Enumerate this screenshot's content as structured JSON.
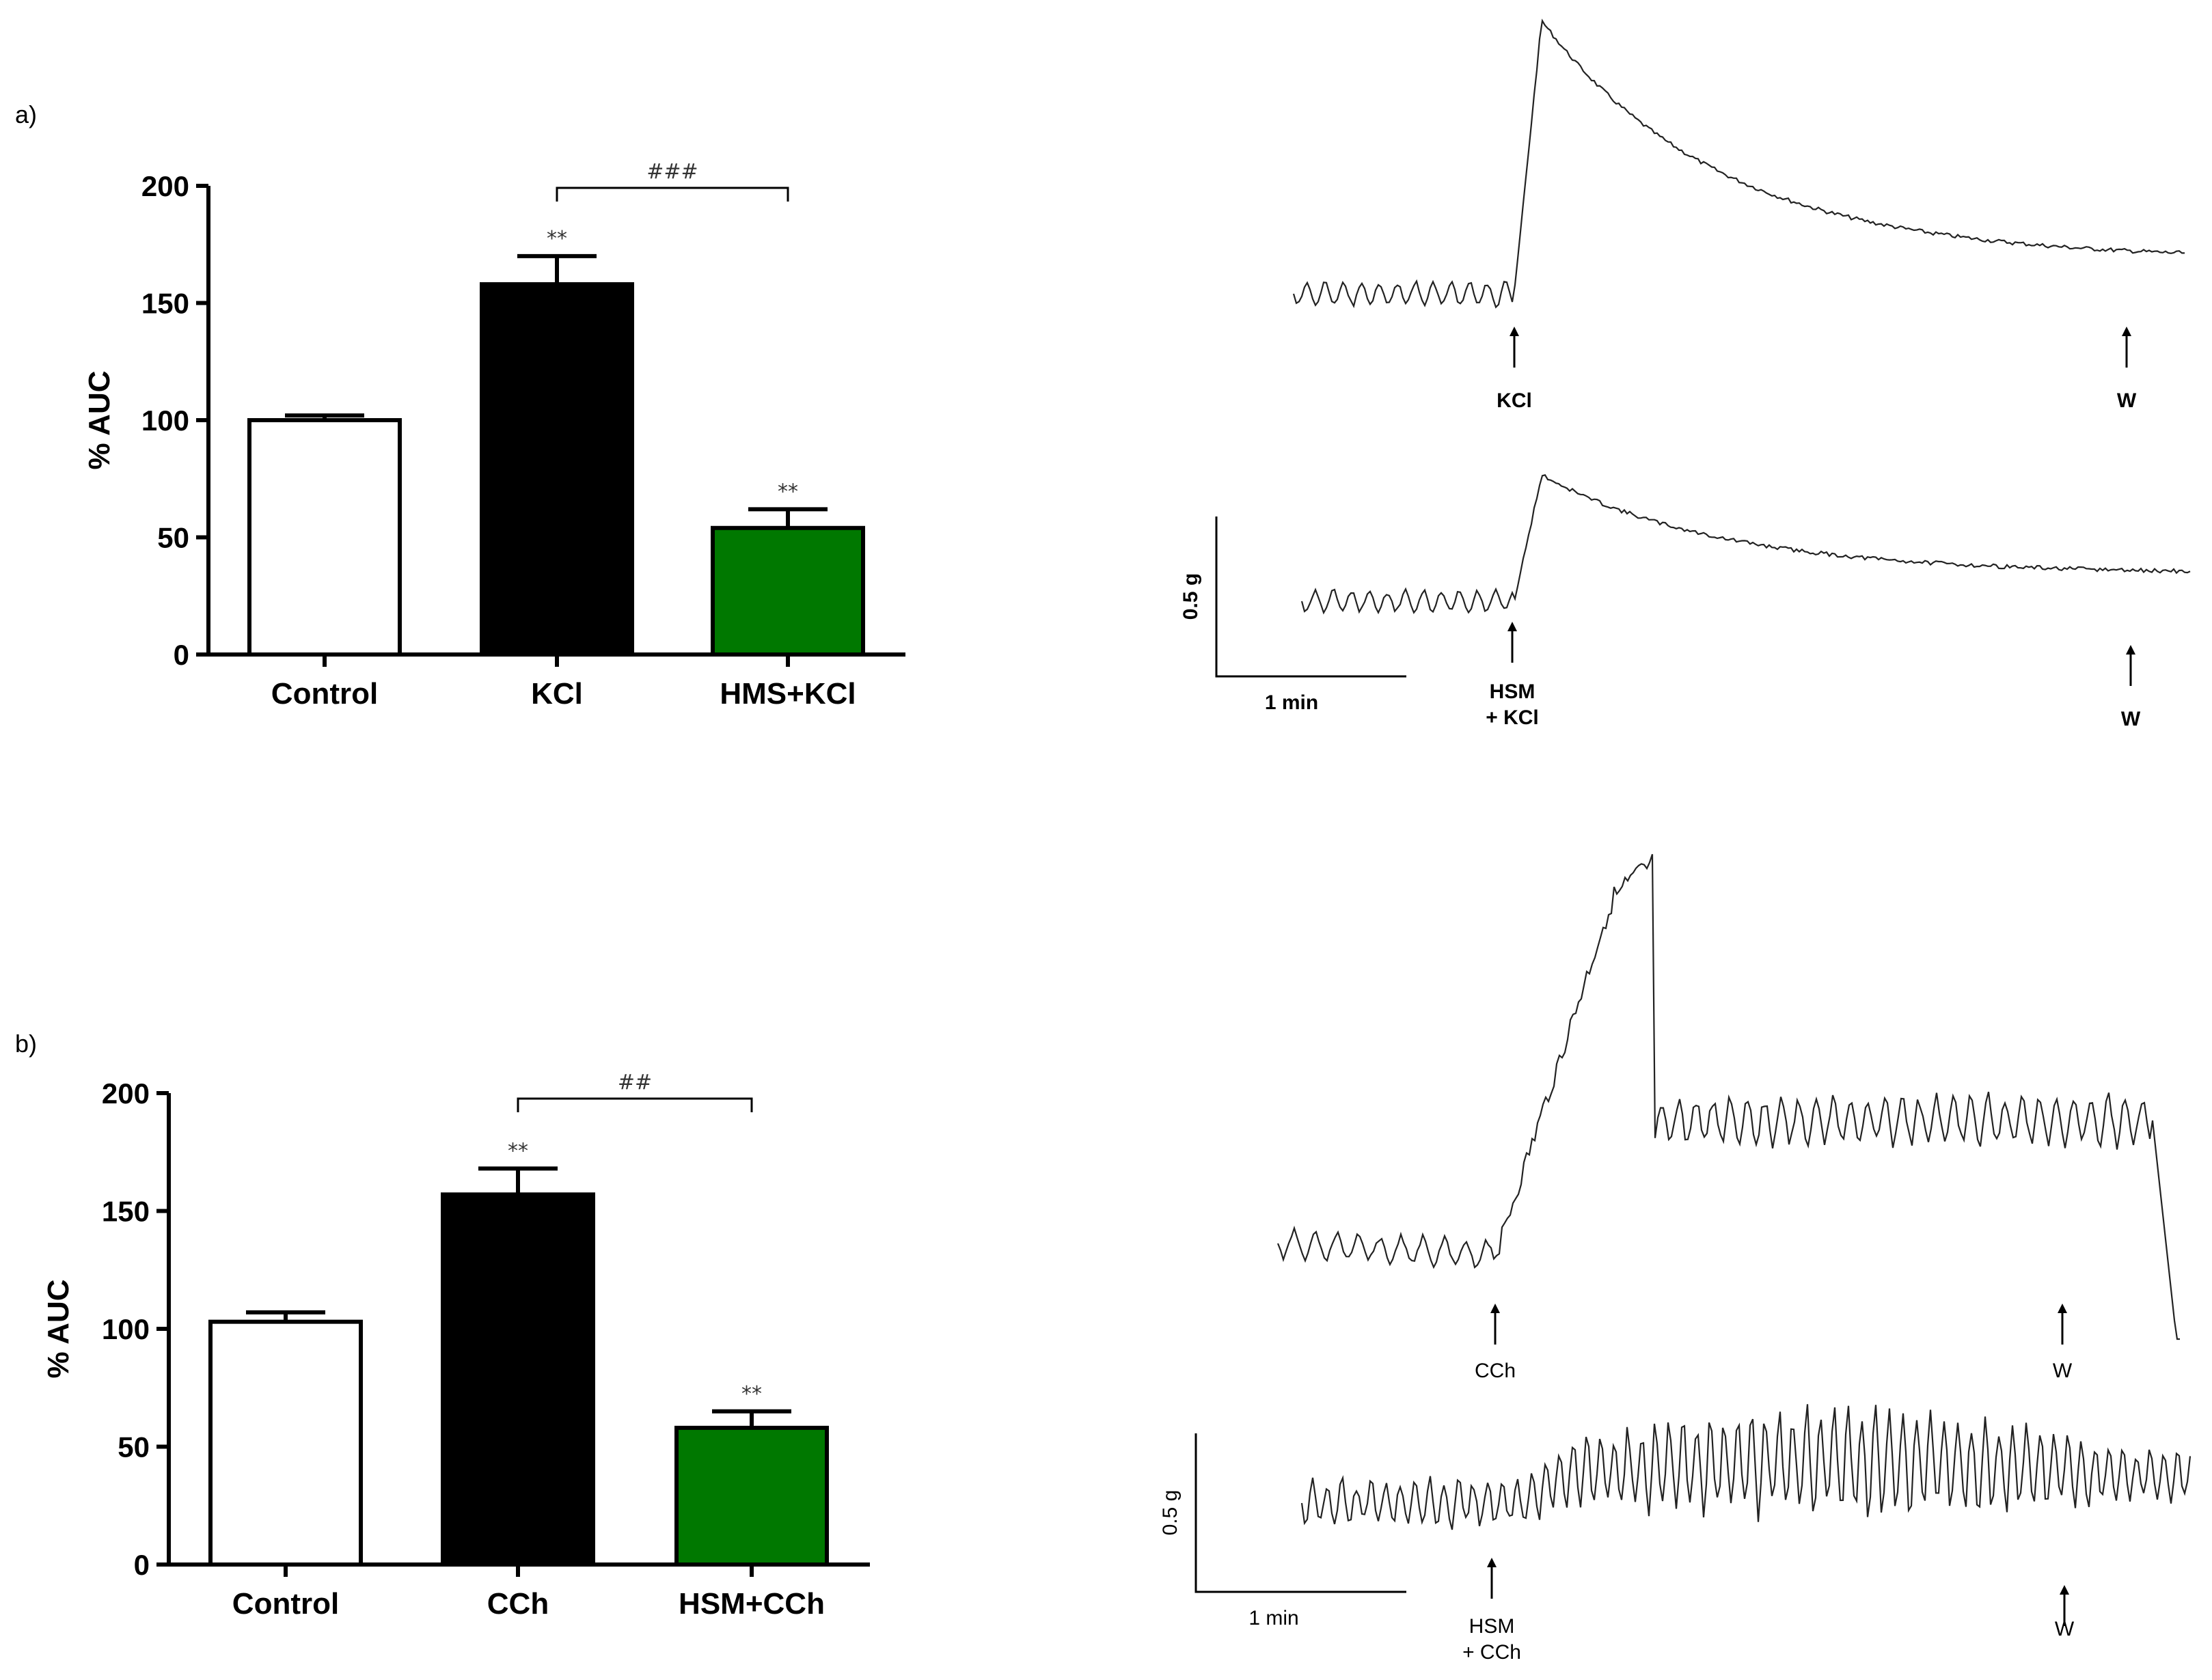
{
  "panels": [
    {
      "label": "a)",
      "chart_data": {
        "type": "bar",
        "ylabel": "% AUC",
        "ylim": [
          0,
          200
        ],
        "yticks": [
          0,
          50,
          100,
          150,
          200
        ],
        "categories": [
          "Control",
          "KCl",
          "HMS+KCl"
        ],
        "values": [
          100,
          158,
          54
        ],
        "errors": [
          2,
          12,
          8
        ],
        "bar_colors": [
          "#ffffff",
          "#000000",
          "#007800"
        ],
        "significance": [
          "",
          "**",
          "**"
        ],
        "comparison": {
          "from": 1,
          "to": 2,
          "label": "###"
        }
      },
      "traces": {
        "upper": {
          "agent_label": "KCl",
          "wash_label": "W",
          "bold": true
        },
        "lower": {
          "agent_label_1": "HSM",
          "agent_label_2": "+ KCl",
          "wash_label": "W",
          "bold": true
        },
        "scale": {
          "y_label": "0.5 g",
          "x_label": "1 min"
        }
      }
    },
    {
      "label": "b)",
      "chart_data": {
        "type": "bar",
        "ylabel": "% AUC",
        "ylim": [
          0,
          200
        ],
        "yticks": [
          0,
          50,
          100,
          150,
          200
        ],
        "categories": [
          "Control",
          "CCh",
          "HSM+CCh"
        ],
        "values": [
          103,
          157,
          58
        ],
        "errors": [
          4,
          11,
          7
        ],
        "bar_colors": [
          "#ffffff",
          "#000000",
          "#007800"
        ],
        "significance": [
          "",
          "**",
          "**"
        ],
        "comparison": {
          "from": 1,
          "to": 2,
          "label": "##"
        }
      },
      "traces": {
        "upper": {
          "agent_label": "CCh",
          "wash_label": "W",
          "bold": false
        },
        "lower": {
          "agent_label_1": "HSM",
          "agent_label_2": "+ CCh",
          "wash_label": "W",
          "bold": false
        },
        "scale": {
          "y_label": "0.5 g",
          "x_label": "1 min"
        }
      }
    }
  ]
}
